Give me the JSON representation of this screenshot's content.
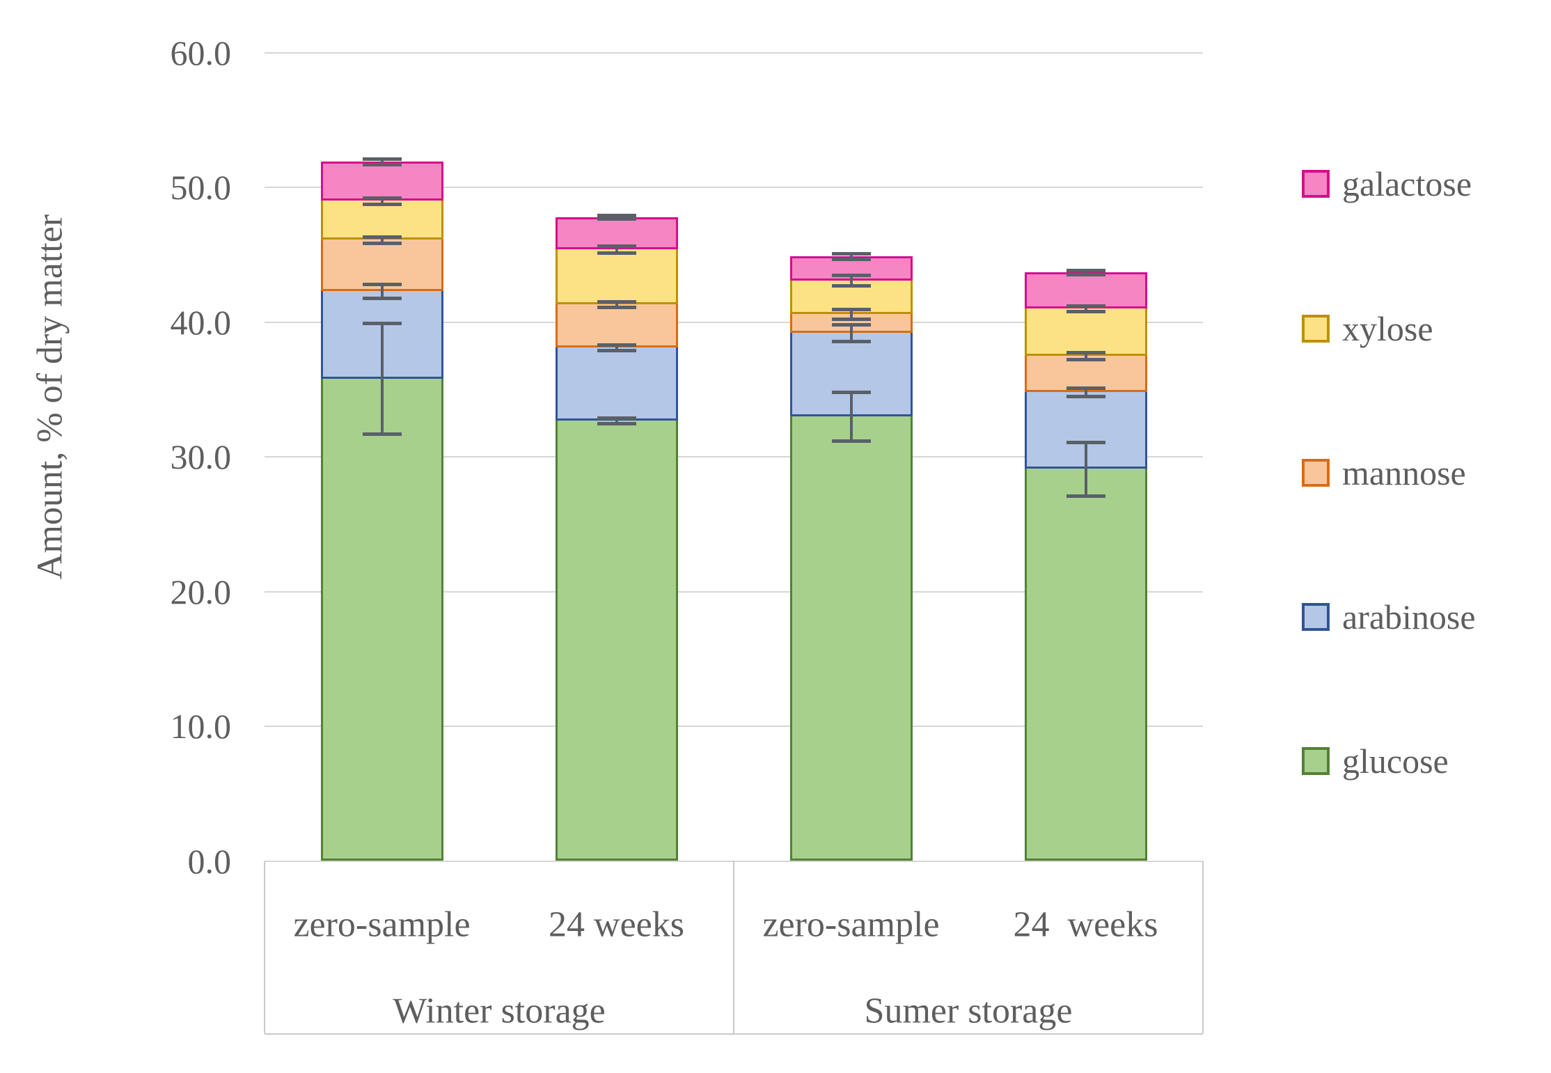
{
  "y_axis": {
    "title": "Amount, % of dry matter",
    "tick_labels": [
      "0.0",
      "10.0",
      "20.0",
      "30.0",
      "40.0",
      "50.0",
      "60.0"
    ]
  },
  "x_axis": {
    "groups": [
      {
        "label": "Winter storage",
        "samples": [
          "zero-sample",
          "24 weeks"
        ]
      },
      {
        "label": "Sumer storage",
        "samples": [
          "zero-sample",
          "24  weeks"
        ]
      }
    ]
  },
  "legend": {
    "items": [
      "galactose",
      "xylose",
      "mannose",
      "arabinose",
      "glucose"
    ]
  },
  "colors": {
    "grid": "#D6D6D6",
    "axis_text": "#5E5E5E",
    "error_bar": "#5A6068",
    "band_border": "#C9C9C9",
    "background": "#FFFFFF"
  },
  "chart_data": {
    "type": "bar",
    "stacked": true,
    "title": "",
    "xlabel": "",
    "ylabel": "Amount, % of dry matter",
    "ylim": [
      0,
      60
    ],
    "ytick_step": 10,
    "grid": true,
    "legend_position": "right",
    "group_labels": [
      "Winter storage",
      "Sumer storage"
    ],
    "categories": [
      "zero-sample",
      "24 weeks",
      "zero-sample",
      "24  weeks"
    ],
    "series": [
      {
        "name": "glucose",
        "fill": "#A8D08D",
        "border": "#538135",
        "values": [
          35.8,
          32.7,
          33.0,
          29.1
        ],
        "errors": [
          4.1,
          0.2,
          1.8,
          2.0
        ]
      },
      {
        "name": "arabinose",
        "fill": "#B4C7E7",
        "border": "#30549B",
        "values": [
          6.5,
          5.4,
          6.2,
          5.7
        ],
        "errors": [
          0.5,
          0.2,
          0.6,
          0.3
        ]
      },
      {
        "name": "mannose",
        "fill": "#F9C69C",
        "border": "#DC6B11",
        "values": [
          3.8,
          3.2,
          1.4,
          2.7
        ],
        "errors": [
          0.25,
          0.2,
          0.35,
          0.25
        ]
      },
      {
        "name": "xylose",
        "fill": "#FDE285",
        "border": "#BF9000",
        "values": [
          2.9,
          4.1,
          2.5,
          3.5
        ],
        "errors": [
          0.25,
          0.25,
          0.4,
          0.2
        ]
      },
      {
        "name": "galactose",
        "fill": "#F585C3",
        "border": "#D40F8C",
        "values": [
          2.9,
          2.4,
          1.8,
          2.7
        ],
        "errors": [
          0.2,
          0.15,
          0.2,
          0.15
        ]
      }
    ],
    "cumulative_tops": [
      [
        35.8,
        42.3,
        46.1,
        49.0,
        51.9
      ],
      [
        32.7,
        38.1,
        41.3,
        45.4,
        47.8
      ],
      [
        33.0,
        39.2,
        40.6,
        43.1,
        44.9
      ],
      [
        29.1,
        34.8,
        37.5,
        41.0,
        43.7
      ]
    ]
  }
}
